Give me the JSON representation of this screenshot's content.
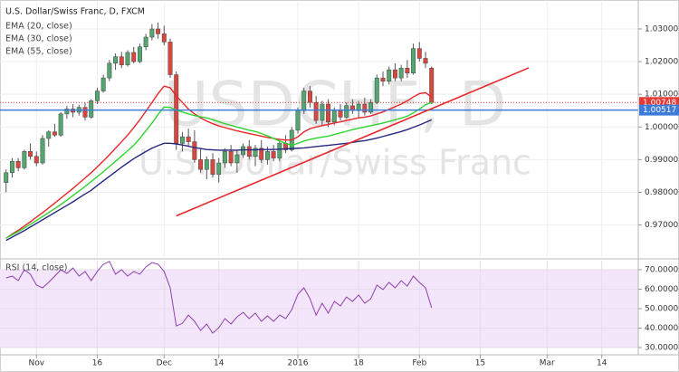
{
  "chart_data": [
    {
      "type": "candlestick",
      "title": "U.S. Dollar/Swiss Franc, D, FXCM",
      "watermark": "USDCHF, D",
      "watermark_subtitle": "U.S. Dollar/Swiss Franc",
      "up_color": "#53a66f",
      "down_color": "#d9463e",
      "open": [
        0.983,
        0.986,
        0.9895,
        0.9875,
        0.9925,
        0.991,
        0.989,
        0.9965,
        0.9985,
        0.9975,
        1.004,
        1.0055,
        1.0045,
        1.006,
        1.003,
        1.008,
        1.011,
        1.015,
        1.0195,
        1.0215,
        1.019,
        1.0228,
        1.02,
        1.0245,
        1.0275,
        1.03,
        1.0285,
        1.026,
        1.016,
        0.995,
        0.997,
        0.9955,
        0.99,
        0.987,
        0.99,
        0.9855,
        0.989,
        0.9925,
        0.989,
        0.9915,
        0.994,
        0.991,
        0.9935,
        0.99,
        0.9925,
        0.9905,
        0.995,
        0.993,
        0.999,
        1.005,
        1.011,
        1.0075,
        1.002,
        1.007,
        1.0015,
        1.005,
        1.003,
        1.0065,
        1.005,
        1.007,
        1.0045,
        1.0075,
        1.015,
        1.014,
        1.0175,
        1.015,
        1.018,
        1.0165,
        1.024,
        1.021,
        1.018
      ],
      "high": [
        0.987,
        0.9905,
        0.9905,
        0.993,
        0.995,
        0.9925,
        0.9975,
        0.999,
        1.001,
        1.0045,
        1.0065,
        1.007,
        1.0068,
        1.0075,
        1.0085,
        1.012,
        1.016,
        1.0205,
        1.0225,
        1.023,
        1.0235,
        1.0245,
        1.0255,
        1.0285,
        1.0315,
        1.032,
        1.031,
        1.027,
        1.017,
        0.9985,
        0.9995,
        0.999,
        0.9935,
        0.991,
        0.992,
        0.9905,
        0.9935,
        0.9945,
        0.993,
        0.995,
        0.996,
        0.9945,
        0.996,
        0.994,
        0.9945,
        0.996,
        0.9975,
        1.0,
        1.006,
        1.012,
        1.0125,
        1.0095,
        1.008,
        1.0085,
        1.006,
        1.007,
        1.0075,
        1.0085,
        1.008,
        1.009,
        1.0085,
        1.016,
        1.017,
        1.0185,
        1.0195,
        1.019,
        1.0205,
        1.0255,
        1.026,
        1.023,
        1.0185
      ],
      "low": [
        0.98,
        0.9845,
        0.9865,
        0.987,
        0.99,
        0.988,
        0.9885,
        0.994,
        0.997,
        0.997,
        1.0025,
        1.003,
        1.0035,
        1.002,
        1.0025,
        1.007,
        1.0105,
        1.014,
        1.0175,
        1.018,
        1.0185,
        1.0195,
        1.0195,
        1.0235,
        1.0265,
        1.027,
        1.025,
        1.015,
        0.993,
        0.9925,
        0.994,
        0.989,
        0.986,
        0.984,
        0.9845,
        0.983,
        0.9875,
        0.988,
        0.986,
        0.9905,
        0.99,
        0.988,
        0.989,
        0.9885,
        0.9895,
        0.9895,
        0.992,
        0.9925,
        0.998,
        1.004,
        1.006,
        1.001,
        1.0005,
        1.0,
        1.0005,
        1.002,
        1.0025,
        1.004,
        1.003,
        1.0035,
        1.004,
        1.007,
        1.0125,
        1.013,
        1.014,
        1.014,
        1.015,
        1.016,
        1.02,
        1.018,
        1.007
      ],
      "close": [
        0.986,
        0.9895,
        0.9875,
        0.9925,
        0.991,
        0.989,
        0.9965,
        0.9985,
        0.9975,
        1.004,
        1.0055,
        1.0045,
        1.006,
        1.003,
        1.008,
        1.011,
        1.015,
        1.0195,
        1.0215,
        1.019,
        1.0228,
        1.02,
        1.0245,
        1.0275,
        1.03,
        1.0285,
        1.026,
        1.016,
        0.995,
        0.997,
        0.9955,
        0.99,
        0.987,
        0.99,
        0.9855,
        0.989,
        0.9925,
        0.989,
        0.9915,
        0.994,
        0.991,
        0.9935,
        0.99,
        0.9925,
        0.9905,
        0.995,
        0.993,
        0.999,
        1.005,
        1.011,
        1.0075,
        1.002,
        1.007,
        1.0015,
        1.005,
        1.003,
        1.0065,
        1.005,
        1.007,
        1.0045,
        1.0075,
        1.015,
        1.014,
        1.0175,
        1.015,
        1.018,
        1.0165,
        1.024,
        1.021,
        1.0195,
        1.00748
      ],
      "series": [
        {
          "name": "EMA (20, close)",
          "color": "#e8262b",
          "values": [
            0.966,
            0.9672,
            0.9684,
            0.9697,
            0.971,
            0.9724,
            0.9738,
            0.9752,
            0.9767,
            0.9782,
            0.9797,
            0.9812,
            0.9828,
            0.9844,
            0.986,
            0.9878,
            0.9896,
            0.9915,
            0.9935,
            0.9955,
            0.9975,
            0.9998,
            1.0022,
            1.0048,
            1.0075,
            1.0102,
            1.0125,
            1.012,
            1.0095,
            1.0075,
            1.0055,
            1.004,
            1.0028,
            1.0018,
            1.001,
            1.0003,
            0.9998,
            0.9993,
            0.9988,
            0.9984,
            0.998,
            0.9976,
            0.9972,
            0.9968,
            0.9965,
            0.9962,
            0.996,
            0.996,
            0.997,
            0.9985,
            0.9995,
            1.0,
            1.0004,
            1.0008,
            1.0012,
            1.0016,
            1.002,
            1.0024,
            1.0028,
            1.003,
            1.0034,
            1.004,
            1.0046,
            1.0054,
            1.0062,
            1.007,
            1.008,
            1.0092,
            1.0102,
            1.0105,
            1.0092
          ]
        },
        {
          "name": "EMA (30, close)",
          "color": "#2fd42f",
          "values": [
            0.966,
            0.967,
            0.968,
            0.9691,
            0.9702,
            0.9714,
            0.9726,
            0.9738,
            0.975,
            0.9763,
            0.9776,
            0.979,
            0.9804,
            0.9818,
            0.9833,
            0.9848,
            0.9863,
            0.9879,
            0.9895,
            0.9911,
            0.9927,
            0.9944,
            0.9965,
            0.9988,
            1.0012,
            1.0038,
            1.0061,
            1.006,
            1.0052,
            1.0046,
            1.004,
            1.0035,
            1.0031,
            1.0028,
            1.0022,
            1.0016,
            1.001,
            1.0005,
            1.0,
            0.9995,
            0.999,
            0.9986,
            0.998,
            0.9973,
            0.9965,
            0.9957,
            0.995,
            0.9944,
            0.995,
            0.9957,
            0.9962,
            0.9966,
            0.9969,
            0.9972,
            0.9977,
            0.9982,
            0.9987,
            0.9992,
            0.9996,
            1.0,
            1.0004,
            1.0008,
            1.0012,
            1.0017,
            1.0022,
            1.0027,
            1.0033,
            1.0043,
            1.0055,
            1.0068,
            1.0075
          ]
        },
        {
          "name": "EMA (55, close)",
          "color": "#27277f",
          "values": [
            0.9653,
            0.9663,
            0.9673,
            0.9683,
            0.9694,
            0.9705,
            0.9716,
            0.9727,
            0.9738,
            0.9749,
            0.976,
            0.9771,
            0.9783,
            0.9795,
            0.9806,
            0.9821,
            0.9835,
            0.9849,
            0.9863,
            0.9877,
            0.989,
            0.9903,
            0.9914,
            0.9925,
            0.9935,
            0.9943,
            0.995,
            0.995,
            0.9948,
            0.9945,
            0.9941,
            0.9937,
            0.9934,
            0.9931,
            0.993,
            0.9929,
            0.9929,
            0.9929,
            0.9929,
            0.993,
            0.993,
            0.993,
            0.9931,
            0.9931,
            0.9931,
            0.9932,
            0.9933,
            0.9934,
            0.9935,
            0.9936,
            0.9938,
            0.994,
            0.9942,
            0.9944,
            0.9946,
            0.9948,
            0.995,
            0.9953,
            0.9956,
            0.9958,
            0.9962,
            0.9966,
            0.9971,
            0.9976,
            0.9981,
            0.9986,
            0.9992,
            0.9999,
            1.0006,
            1.0014,
            1.0022
          ]
        }
      ],
      "xlim": [
        -1,
        104
      ],
      "ylim": [
        0.9602,
        1.0383
      ],
      "yticks": [
        {
          "value": 0.97,
          "label": "0.97000"
        },
        {
          "value": 0.98,
          "label": "0.98000"
        },
        {
          "value": 0.99,
          "label": "0.99000"
        },
        {
          "value": 1.0,
          "label": "1.00000"
        },
        {
          "value": 1.01,
          "label": "1.01000"
        },
        {
          "value": 1.02,
          "label": "1.02000"
        },
        {
          "value": 1.03,
          "label": "1.03000"
        }
      ],
      "price_lines": [
        {
          "value": 1.00748,
          "color": "#e53935",
          "style": "dotted"
        },
        {
          "value": 1.00517,
          "color": "#3d7bd9",
          "style": "solid"
        }
      ],
      "trendline": {
        "start": [
          28,
          0.9728
        ],
        "end": [
          86,
          1.0181
        ],
        "color": "#e8262b"
      },
      "grid": true
    },
    {
      "type": "line",
      "title": "RSI (14, close)",
      "color": "#8e3fb0",
      "band": [
        30,
        70
      ],
      "band_color": "#f4e6fa",
      "values": [
        65.8,
        66.7,
        64.4,
        70.0,
        67.7,
        62.1,
        60.7,
        63.5,
        66.7,
        70.0,
        68.1,
        70.9,
        66.7,
        69.1,
        64.4,
        69.1,
        72.8,
        74.3,
        67.7,
        70.0,
        66.7,
        69.1,
        67.7,
        71.4,
        73.7,
        72.8,
        69.1,
        60.7,
        41.1,
        42.5,
        46.7,
        43.5,
        38.8,
        42.1,
        37.4,
        40.2,
        44.9,
        42.1,
        45.8,
        48.1,
        44.9,
        47.7,
        43.5,
        46.3,
        43.5,
        46.7,
        44.9,
        49.5,
        57.4,
        60.7,
        55.1,
        46.7,
        52.8,
        47.7,
        53.7,
        51.4,
        56.0,
        53.7,
        57.0,
        52.8,
        55.1,
        62.1,
        59.8,
        63.5,
        60.7,
        64.4,
        61.6,
        66.7,
        63.5,
        60.7,
        50.5
      ],
      "xlim": [
        -1,
        104
      ],
      "ylim": [
        26.3,
        74.65
      ],
      "yticks": [
        {
          "value": 30,
          "label": "30.0000"
        },
        {
          "value": 40,
          "label": "40.0000"
        },
        {
          "value": 50,
          "label": "50.0000"
        },
        {
          "value": 60,
          "label": "60.0000"
        },
        {
          "value": 70,
          "label": "70.0000"
        }
      ],
      "xticks": [
        {
          "value": 5,
          "label": "Nov"
        },
        {
          "value": 15,
          "label": "16"
        },
        {
          "value": 26,
          "label": "Dec"
        },
        {
          "value": 35,
          "label": "14"
        },
        {
          "value": 48,
          "label": "2016"
        },
        {
          "value": 58,
          "label": "18"
        },
        {
          "value": 68,
          "label": "Feb"
        },
        {
          "value": 78,
          "label": "15"
        },
        {
          "value": 89,
          "label": "Mar"
        },
        {
          "value": 98,
          "label": "14"
        }
      ],
      "grid": true
    }
  ]
}
